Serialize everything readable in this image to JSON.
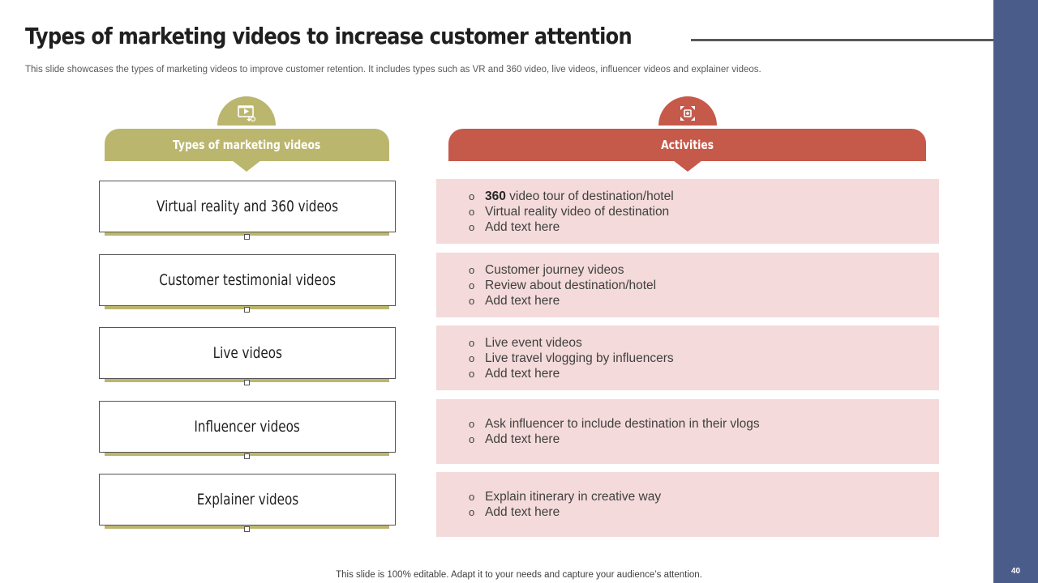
{
  "slide": {
    "title": "Types of marketing videos to increase customer attention",
    "subtitle": "This slide showcases the types of marketing videos to improve customer retention. It includes types such as VR and 360 video, live videos, influencer videos and explainer videos.",
    "footer": "This slide is 100% editable. Adapt it to your needs and capture your audience’s attention.",
    "page_number": "40"
  },
  "headers": {
    "left": {
      "label": "Types of marketing videos",
      "icon": "video-play-icon"
    },
    "right": {
      "label": "Activities",
      "icon": "vr-expand-icon"
    }
  },
  "rows": [
    {
      "type": "Virtual reality and 360 videos",
      "bold_prefix": "360",
      "activities": [
        " video tour of destination/hotel",
        "Virtual reality video of destination",
        "Add text here"
      ]
    },
    {
      "type": "Customer testimonial videos",
      "activities": [
        "Customer journey videos",
        "Review about destination/hotel",
        "Add text here"
      ]
    },
    {
      "type": "Live videos",
      "activities": [
        "Live event videos",
        "Live travel vlogging by influencers",
        "Add text here"
      ]
    },
    {
      "type": "Influencer videos",
      "activities": [
        "Ask influencer to include destination in their vlogs",
        "Add text here"
      ]
    },
    {
      "type": "Explainer videos",
      "activities": [
        "Explain itinerary in creative way",
        "Add text here"
      ]
    }
  ],
  "bullet_glyph": "o",
  "colors": {
    "olive": "#bbb66d",
    "red": "#c55a4a",
    "pink": "#f4dada",
    "sidebar": "#4a5d8a"
  }
}
